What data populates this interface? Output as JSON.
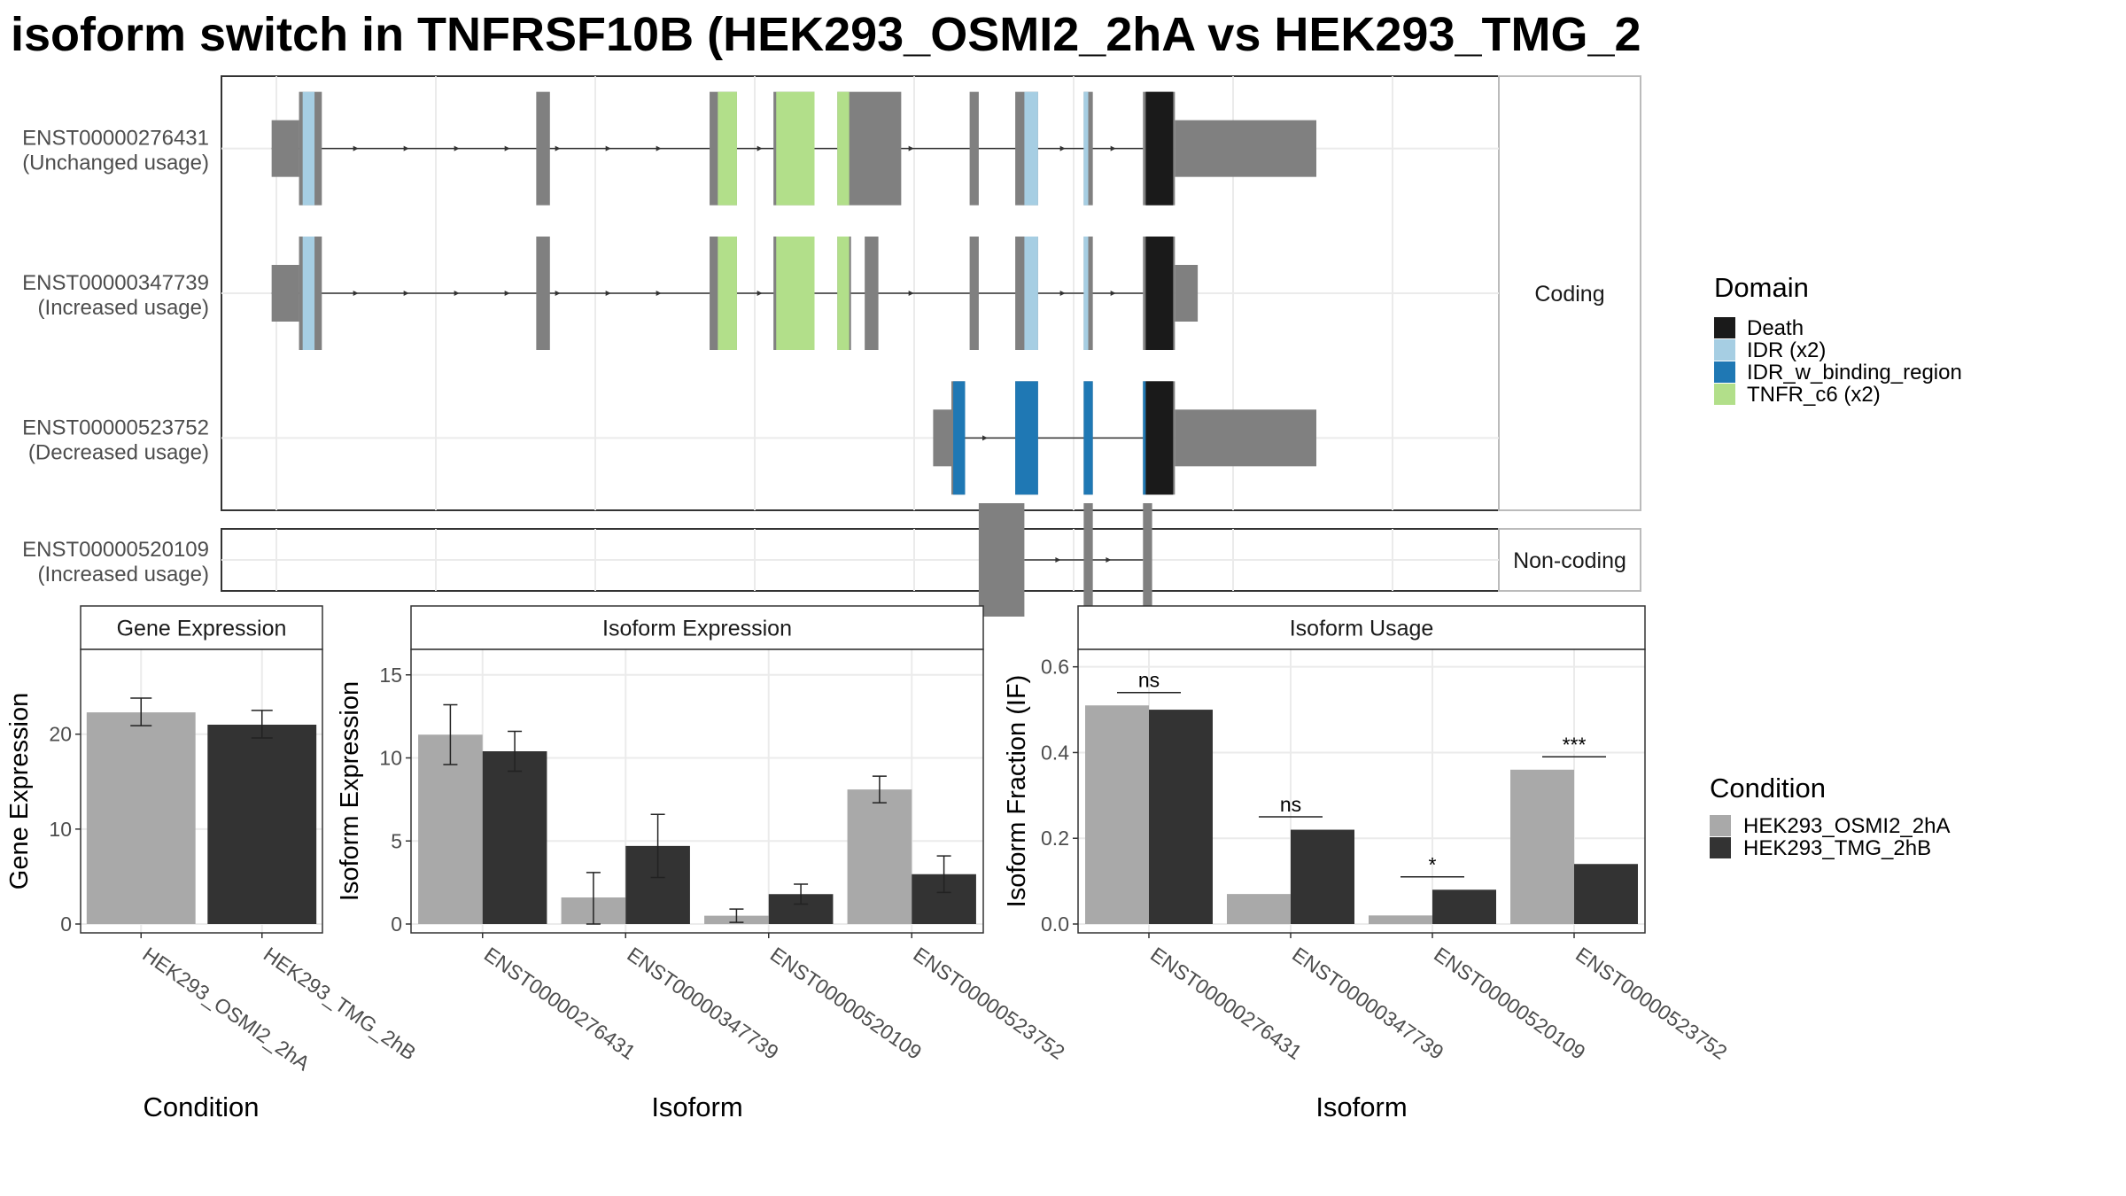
{
  "title": "isoform switch in TNFRSF10B (HEK293_OSMI2_2hA vs HEK293_TMG_2",
  "colors": {
    "exon": "#808080",
    "condition_a": "#a9a9a9",
    "condition_b": "#333333",
    "Death": "#1a1a1a",
    "IDR": "#a6cee3",
    "IDR_w_binding_region": "#1f78b4",
    "TNFR_c6": "#b2df8a"
  },
  "structure": {
    "coding_strip": "Coding",
    "noncoding_strip": "Non-coding",
    "transcripts": [
      {
        "id": "ENST00000276431",
        "usage": "(Unchanged usage)",
        "group": "coding",
        "intron": [
          55,
          1010
        ],
        "exons": [
          {
            "s": 55,
            "e": 85,
            "t": "utr"
          },
          {
            "s": 85,
            "e": 110,
            "t": "cds"
          },
          {
            "s": 345,
            "e": 360,
            "t": "cds"
          },
          {
            "s": 535,
            "e": 565,
            "t": "cds"
          },
          {
            "s": 605,
            "e": 650,
            "t": "cds"
          },
          {
            "s": 675,
            "e": 745,
            "t": "cds"
          },
          {
            "s": 820,
            "e": 830,
            "t": "cds"
          },
          {
            "s": 870,
            "e": 895,
            "t": "cds"
          },
          {
            "s": 945,
            "e": 955,
            "t": "cds"
          },
          {
            "s": 1010,
            "e": 1045,
            "t": "cds"
          },
          {
            "s": 1045,
            "e": 1200,
            "t": "utr"
          }
        ],
        "domains": [
          {
            "s": 89,
            "e": 102,
            "d": "IDR"
          },
          {
            "s": 544,
            "e": 565,
            "d": "TNFR_c6"
          },
          {
            "s": 608,
            "e": 650,
            "d": "TNFR_c6"
          },
          {
            "s": 675,
            "e": 688,
            "d": "TNFR_c6"
          },
          {
            "s": 880,
            "e": 895,
            "d": "IDR"
          },
          {
            "s": 945,
            "e": 950,
            "d": "IDR"
          },
          {
            "s": 1013,
            "e": 1043,
            "d": "Death"
          }
        ]
      },
      {
        "id": "ENST00000347739",
        "usage": "(Increased usage)",
        "group": "coding",
        "intron": [
          55,
          1010
        ],
        "exons": [
          {
            "s": 55,
            "e": 85,
            "t": "utr"
          },
          {
            "s": 85,
            "e": 110,
            "t": "cds"
          },
          {
            "s": 345,
            "e": 360,
            "t": "cds"
          },
          {
            "s": 535,
            "e": 565,
            "t": "cds"
          },
          {
            "s": 605,
            "e": 650,
            "t": "cds"
          },
          {
            "s": 675,
            "e": 690,
            "t": "cds"
          },
          {
            "s": 705,
            "e": 720,
            "t": "cds"
          },
          {
            "s": 820,
            "e": 830,
            "t": "cds"
          },
          {
            "s": 870,
            "e": 895,
            "t": "cds"
          },
          {
            "s": 945,
            "e": 955,
            "t": "cds"
          },
          {
            "s": 1010,
            "e": 1045,
            "t": "cds"
          },
          {
            "s": 1045,
            "e": 1070,
            "t": "utr"
          }
        ],
        "domains": [
          {
            "s": 89,
            "e": 102,
            "d": "IDR"
          },
          {
            "s": 544,
            "e": 565,
            "d": "TNFR_c6"
          },
          {
            "s": 608,
            "e": 650,
            "d": "TNFR_c6"
          },
          {
            "s": 675,
            "e": 688,
            "d": "TNFR_c6"
          },
          {
            "s": 880,
            "e": 895,
            "d": "IDR"
          },
          {
            "s": 945,
            "e": 950,
            "d": "IDR"
          },
          {
            "s": 1013,
            "e": 1043,
            "d": "Death"
          }
        ]
      },
      {
        "id": "ENST00000523752",
        "usage": "(Decreased usage)",
        "group": "coding",
        "intron": [
          800,
          1010
        ],
        "exons": [
          {
            "s": 780,
            "e": 800,
            "t": "utr"
          },
          {
            "s": 800,
            "e": 815,
            "t": "cds"
          },
          {
            "s": 870,
            "e": 895,
            "t": "cds"
          },
          {
            "s": 945,
            "e": 955,
            "t": "cds"
          },
          {
            "s": 1010,
            "e": 1045,
            "t": "cds"
          },
          {
            "s": 1045,
            "e": 1200,
            "t": "utr"
          }
        ],
        "domains": [
          {
            "s": 802,
            "e": 815,
            "d": "IDR_w_binding_region"
          },
          {
            "s": 870,
            "e": 895,
            "d": "IDR_w_binding_region"
          },
          {
            "s": 945,
            "e": 955,
            "d": "IDR_w_binding_region"
          },
          {
            "s": 1010,
            "e": 1013,
            "d": "IDR_w_binding_region"
          },
          {
            "s": 1013,
            "e": 1043,
            "d": "Death"
          }
        ]
      },
      {
        "id": "ENST00000520109",
        "usage": "(Increased usage)",
        "group": "noncoding",
        "intron": [
          880,
          1010
        ],
        "exons": [
          {
            "s": 830,
            "e": 880,
            "t": "cds"
          },
          {
            "s": 945,
            "e": 955,
            "t": "cds"
          },
          {
            "s": 1010,
            "e": 1020,
            "t": "cds"
          }
        ],
        "domains": []
      }
    ]
  },
  "legend_domain": {
    "title": "Domain",
    "items": [
      {
        "label": "Death",
        "key": "Death"
      },
      {
        "label": "IDR (x2)",
        "key": "IDR"
      },
      {
        "label": "IDR_w_binding_region",
        "key": "IDR_w_binding_region"
      },
      {
        "label": "TNFR_c6 (x2)",
        "key": "TNFR_c6"
      }
    ]
  },
  "legend_condition": {
    "title": "Condition",
    "items": [
      {
        "label": "HEK293_OSMI2_2hA",
        "key": "condition_a"
      },
      {
        "label": "HEK293_TMG_2hB",
        "key": "condition_b"
      }
    ]
  },
  "chart_data": [
    {
      "type": "bar",
      "title": "Gene Expression",
      "xlabel": "Condition",
      "ylabel": "Gene Expression",
      "ylim": [
        0,
        28
      ],
      "yticks": [
        0,
        10,
        20
      ],
      "categories": [
        "HEK293_OSMI2_2hA",
        "HEK293_TMG_2hB"
      ],
      "values": [
        22.3,
        21.0
      ],
      "errors": [
        [
          20.9,
          23.8
        ],
        [
          19.6,
          22.5
        ]
      ],
      "grid": true
    },
    {
      "type": "bar",
      "title": "Isoform Expression",
      "xlabel": "Isoform",
      "ylabel": "Isoform Expression",
      "ylim": [
        0,
        16
      ],
      "yticks": [
        0,
        5,
        10,
        15
      ],
      "categories": [
        "ENST00000276431",
        "ENST00000347739",
        "ENST00000520109",
        "ENST00000523752"
      ],
      "series": [
        {
          "name": "HEK293_OSMI2_2hA",
          "values": [
            11.4,
            1.6,
            0.5,
            8.1
          ],
          "errors": [
            [
              9.6,
              13.2
            ],
            [
              0.0,
              3.1
            ],
            [
              0.1,
              0.9
            ],
            [
              7.3,
              8.9
            ]
          ]
        },
        {
          "name": "HEK293_TMG_2hB",
          "values": [
            10.4,
            4.7,
            1.8,
            3.0
          ],
          "errors": [
            [
              9.2,
              11.6
            ],
            [
              2.8,
              6.6
            ],
            [
              1.2,
              2.4
            ],
            [
              1.9,
              4.1
            ]
          ]
        }
      ],
      "grid": true
    },
    {
      "type": "bar",
      "title": "Isoform Usage",
      "xlabel": "Isoform",
      "ylabel": "Isoform Fraction (IF)",
      "ylim": [
        0,
        0.62
      ],
      "yticks": [
        0.0,
        0.2,
        0.4,
        0.6
      ],
      "ytick_labels": [
        "0.0",
        "0.2",
        "0.4",
        "0.6"
      ],
      "categories": [
        "ENST00000276431",
        "ENST00000347739",
        "ENST00000520109",
        "ENST00000523752"
      ],
      "series": [
        {
          "name": "HEK293_OSMI2_2hA",
          "values": [
            0.51,
            0.07,
            0.02,
            0.36
          ]
        },
        {
          "name": "HEK293_TMG_2hB",
          "values": [
            0.5,
            0.22,
            0.08,
            0.14
          ]
        }
      ],
      "significance": [
        "ns",
        "ns",
        "*",
        "***"
      ],
      "sig_y": [
        0.54,
        0.25,
        0.11,
        0.39
      ],
      "grid": true
    }
  ]
}
